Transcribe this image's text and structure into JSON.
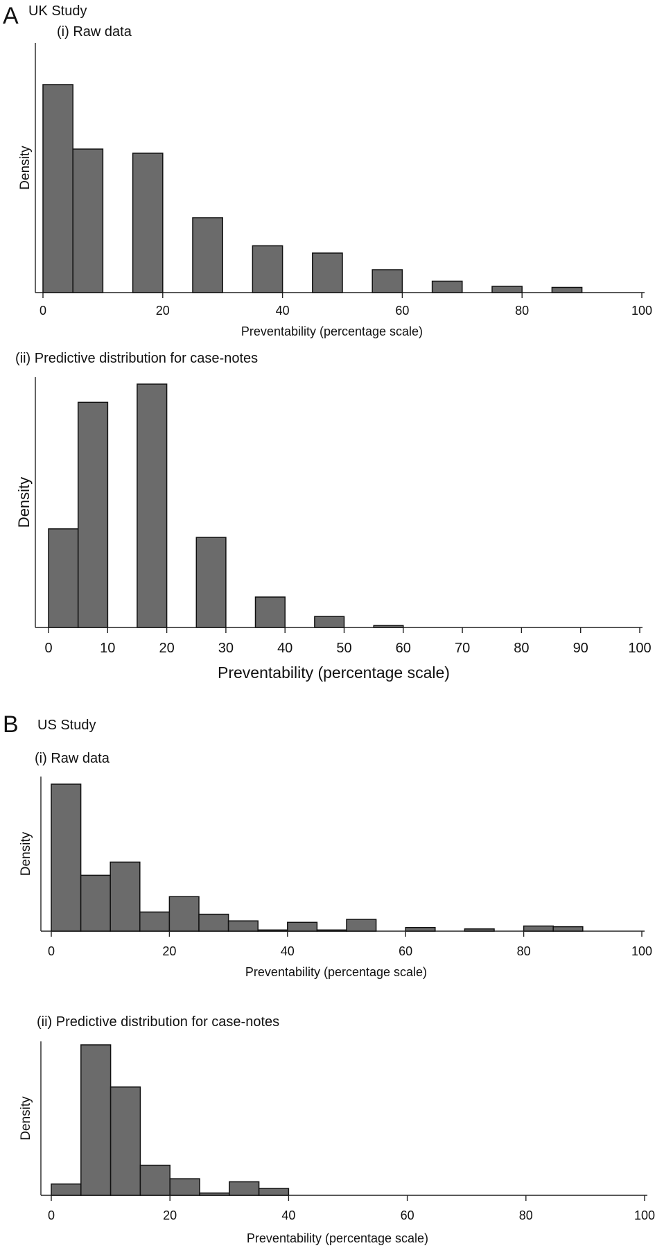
{
  "panels": {
    "A": {
      "letter": "A",
      "title": "UK Study"
    },
    "B": {
      "letter": "B",
      "title": "US Study"
    }
  },
  "chart_data": [
    {
      "id": "uk_raw",
      "panel": "A",
      "type": "bar",
      "subtitle": "(i) Raw data",
      "xlabel": "Preventability (percentage scale)",
      "ylabel": "Density",
      "xlim": [
        0,
        100
      ],
      "xticks": [
        0,
        20,
        40,
        60,
        80,
        100
      ],
      "bin_width": 5,
      "bins": [
        {
          "x0": 0,
          "x1": 5,
          "value": 1.0
        },
        {
          "x0": 5,
          "x1": 10,
          "value": 0.69
        },
        {
          "x0": 15,
          "x1": 20,
          "value": 0.67
        },
        {
          "x0": 25,
          "x1": 30,
          "value": 0.36
        },
        {
          "x0": 35,
          "x1": 40,
          "value": 0.225
        },
        {
          "x0": 45,
          "x1": 50,
          "value": 0.19
        },
        {
          "x0": 55,
          "x1": 60,
          "value": 0.11
        },
        {
          "x0": 65,
          "x1": 70,
          "value": 0.055
        },
        {
          "x0": 75,
          "x1": 80,
          "value": 0.03
        },
        {
          "x0": 85,
          "x1": 90,
          "value": 0.025
        }
      ],
      "bar_color": "#6b6b6b"
    },
    {
      "id": "uk_pred",
      "panel": "A",
      "type": "bar",
      "subtitle": "(ii) Predictive distribution for case-notes",
      "xlabel": "Preventability (percentage scale)",
      "ylabel": "Density",
      "xlim": [
        0,
        100
      ],
      "xticks": [
        0,
        10,
        20,
        30,
        40,
        50,
        60,
        70,
        80,
        90,
        100
      ],
      "bin_width": 5,
      "bins": [
        {
          "x0": 0,
          "x1": 5,
          "value": 0.405
        },
        {
          "x0": 5,
          "x1": 10,
          "value": 0.925
        },
        {
          "x0": 15,
          "x1": 20,
          "value": 1.0
        },
        {
          "x0": 25,
          "x1": 30,
          "value": 0.37
        },
        {
          "x0": 35,
          "x1": 40,
          "value": 0.125
        },
        {
          "x0": 45,
          "x1": 50,
          "value": 0.045
        },
        {
          "x0": 55,
          "x1": 60,
          "value": 0.008
        }
      ],
      "bar_color": "#6b6b6b"
    },
    {
      "id": "us_raw",
      "panel": "B",
      "type": "bar",
      "subtitle": "(i) Raw data",
      "xlabel": "Preventability (percentage scale)",
      "ylabel": "Density",
      "xlim": [
        0,
        100
      ],
      "xticks": [
        0,
        20,
        40,
        60,
        80,
        100
      ],
      "bin_width": 5,
      "bins": [
        {
          "x0": 0,
          "x1": 5,
          "value": 1.0
        },
        {
          "x0": 5,
          "x1": 10,
          "value": 0.38
        },
        {
          "x0": 10,
          "x1": 15,
          "value": 0.47
        },
        {
          "x0": 15,
          "x1": 20,
          "value": 0.13
        },
        {
          "x0": 20,
          "x1": 25,
          "value": 0.235
        },
        {
          "x0": 25,
          "x1": 30,
          "value": 0.115
        },
        {
          "x0": 30,
          "x1": 35,
          "value": 0.07
        },
        {
          "x0": 35,
          "x1": 40,
          "value": 0.008
        },
        {
          "x0": 40,
          "x1": 45,
          "value": 0.06
        },
        {
          "x0": 45,
          "x1": 50,
          "value": 0.008
        },
        {
          "x0": 50,
          "x1": 55,
          "value": 0.08
        },
        {
          "x0": 60,
          "x1": 65,
          "value": 0.025
        },
        {
          "x0": 70,
          "x1": 75,
          "value": 0.015
        },
        {
          "x0": 80,
          "x1": 85,
          "value": 0.035
        },
        {
          "x0": 85,
          "x1": 90,
          "value": 0.03
        }
      ],
      "bar_color": "#6b6b6b"
    },
    {
      "id": "us_pred",
      "panel": "B",
      "type": "bar",
      "subtitle": "(ii) Predictive distribution for case-notes",
      "xlabel": "Preventability (percentage scale)",
      "ylabel": "Density",
      "xlim": [
        0,
        100
      ],
      "xticks": [
        0,
        20,
        40,
        60,
        80,
        100
      ],
      "bin_width": 5,
      "bins": [
        {
          "x0": 0,
          "x1": 5,
          "value": 0.075
        },
        {
          "x0": 5,
          "x1": 10,
          "value": 1.0
        },
        {
          "x0": 10,
          "x1": 15,
          "value": 0.72
        },
        {
          "x0": 15,
          "x1": 20,
          "value": 0.2
        },
        {
          "x0": 20,
          "x1": 25,
          "value": 0.11
        },
        {
          "x0": 25,
          "x1": 30,
          "value": 0.015
        },
        {
          "x0": 30,
          "x1": 35,
          "value": 0.09
        },
        {
          "x0": 35,
          "x1": 40,
          "value": 0.045
        }
      ],
      "bar_color": "#6b6b6b"
    }
  ]
}
